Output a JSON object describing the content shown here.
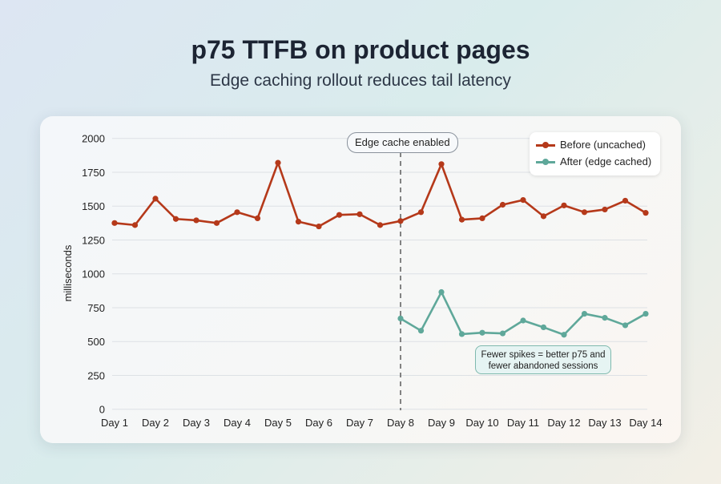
{
  "header": {
    "title": "p75 TTFB on product pages",
    "subtitle": "Edge caching rollout reduces tail latency"
  },
  "chart_data": {
    "type": "line",
    "title": "p75 TTFB on product pages",
    "subtitle": "Edge caching rollout reduces tail latency",
    "xlabel": "",
    "ylabel": "milliseconds",
    "ylim": [
      0,
      2000
    ],
    "yticks": [
      "0",
      "250",
      "500",
      "750",
      "1000",
      "1250",
      "1500",
      "1750",
      "2000"
    ],
    "ytick_values": [
      0,
      250,
      500,
      750,
      1000,
      1250,
      1500,
      1750,
      2000
    ],
    "xticks": [
      "Day 1",
      "Day 2",
      "Day 3",
      "Day 4",
      "Day 5",
      "Day 6",
      "Day 7",
      "Day 8",
      "Day 9",
      "Day 10",
      "Day 11",
      "Day 12",
      "Day 13",
      "Day 14"
    ],
    "grid": true,
    "legend_position": "top-right",
    "series": [
      {
        "name": "Before (uncached)",
        "color": "#b5391a",
        "x": [
          1,
          1.5,
          2,
          2.5,
          3,
          3.5,
          4,
          4.5,
          5,
          5.5,
          6,
          6.5,
          7,
          7.5,
          8,
          8.5,
          9,
          9.5,
          10,
          10.5,
          11,
          11.5,
          12,
          12.5,
          13,
          13.5,
          14
        ],
        "values": [
          1375,
          1360,
          1555,
          1405,
          1395,
          1375,
          1455,
          1410,
          1820,
          1385,
          1350,
          1435,
          1440,
          1360,
          1390,
          1455,
          1810,
          1400,
          1410,
          1510,
          1545,
          1425,
          1505,
          1455,
          1475,
          1540,
          1450
        ]
      },
      {
        "name": "After (edge cached)",
        "color": "#5fa89a",
        "x": [
          8,
          8.5,
          9,
          9.5,
          10,
          10.5,
          11,
          11.5,
          12,
          12.5,
          13,
          13.5,
          14
        ],
        "values": [
          670,
          580,
          865,
          555,
          565,
          560,
          655,
          605,
          550,
          705,
          675,
          620,
          705
        ]
      }
    ],
    "annotations": [
      {
        "text": "Edge cache enabled",
        "x": 8
      },
      {
        "text_line1": "Fewer spikes = better p75 and",
        "text_line2": "fewer abandoned sessions"
      }
    ]
  }
}
